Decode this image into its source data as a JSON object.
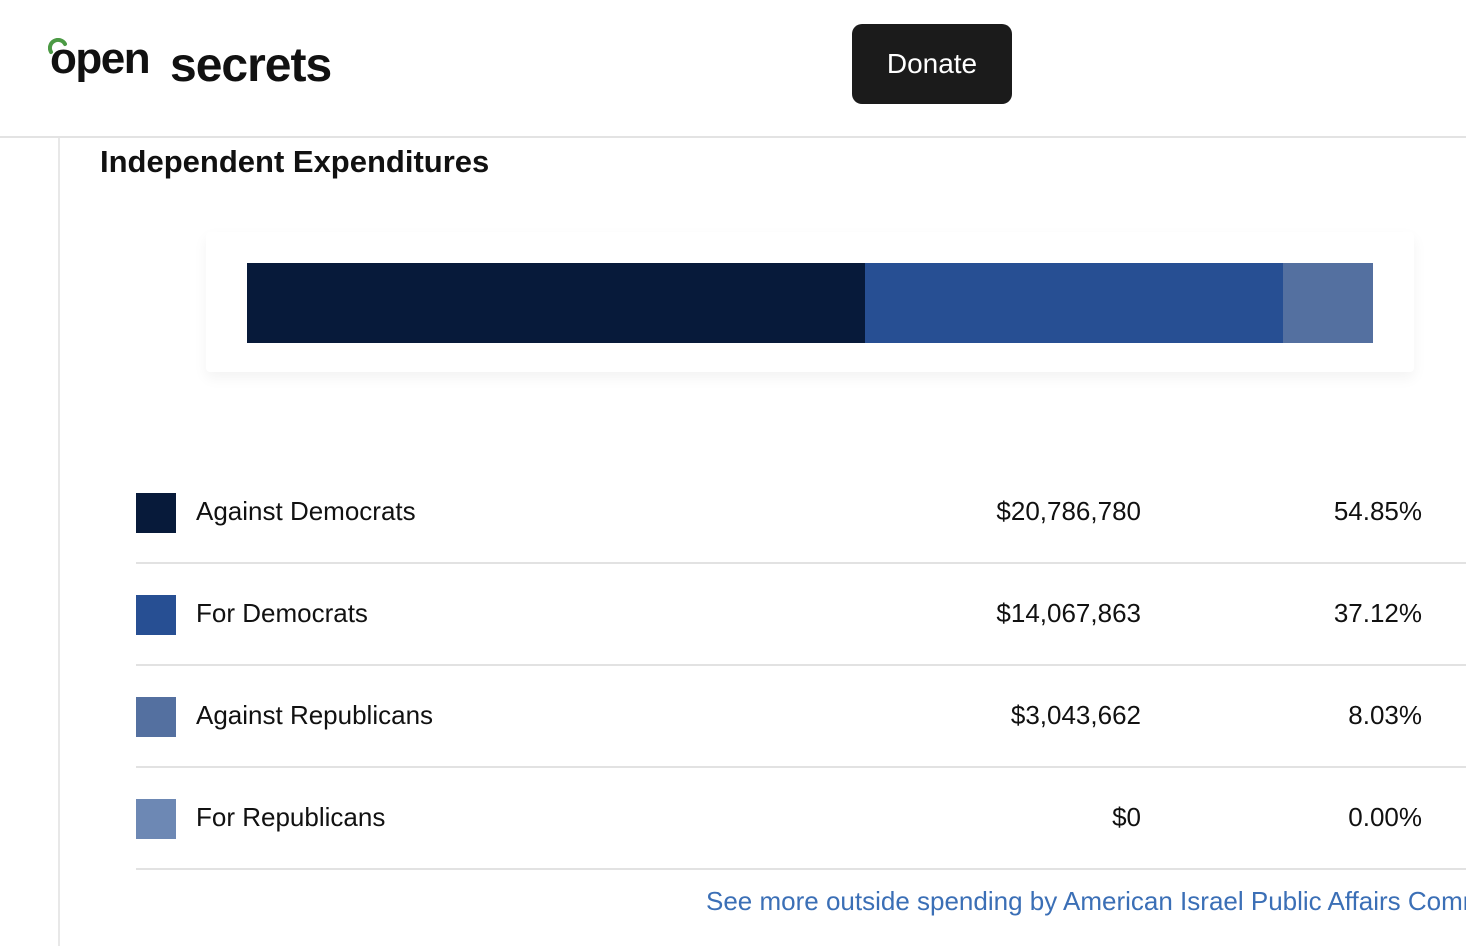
{
  "header": {
    "logo": {
      "part1": "open",
      "part2": "secrets"
    },
    "donate_label": "Donate"
  },
  "section": {
    "title": "Independent Expenditures"
  },
  "chart_data": {
    "type": "bar",
    "stacked": true,
    "orientation": "horizontal",
    "categories": [
      "Against Democrats",
      "For Democrats",
      "Against Republicans",
      "For Republicans"
    ],
    "values": [
      20786780,
      14067863,
      3043662,
      0
    ],
    "percents": [
      54.85,
      37.12,
      8.03,
      0.0
    ],
    "colors": [
      "#071a3a",
      "#274f93",
      "#5470a0",
      "#6d88b4"
    ]
  },
  "rows": [
    {
      "label": "Against Democrats",
      "amount": "$20,786,780",
      "percent": "54.85%",
      "color": "#071a3a"
    },
    {
      "label": "For Democrats",
      "amount": "$14,067,863",
      "percent": "37.12%",
      "color": "#274f93"
    },
    {
      "label": "Against Republicans",
      "amount": "$3,043,662",
      "percent": "8.03%",
      "color": "#5470a0"
    },
    {
      "label": "For Republicans",
      "amount": "$0",
      "percent": "0.00%",
      "color": "#6d88b4"
    }
  ],
  "footer": {
    "link_text": "See more outside spending by American Israel Public Affairs Committee"
  }
}
